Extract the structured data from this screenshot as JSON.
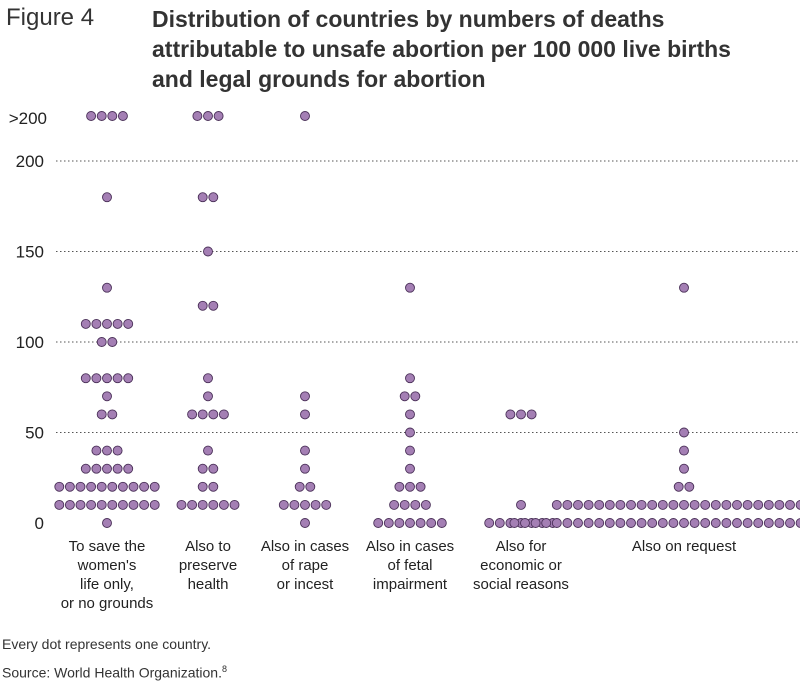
{
  "figure": {
    "label": "Figure 4",
    "title_lines": [
      "Distribution of countries by numbers of deaths",
      "attributable to unsafe abortion per 100 000 live births",
      "and legal grounds for abortion"
    ]
  },
  "footnotes": {
    "note": "Every dot represents one country.",
    "source": "Source: World Health Organization.",
    "source_ref": "8"
  },
  "chart_data": {
    "type": "scatter",
    "subtype": "dot-plot",
    "ylim": [
      0,
      200
    ],
    "overflow_label": ">200",
    "y_ticks": [
      0,
      50,
      100,
      150,
      200
    ],
    "grid": "dotted horizontal",
    "dot_color": "#a47fb4",
    "dot_stroke": "#4a3058",
    "categories": [
      {
        "label_lines": [
          "To save the",
          "women's",
          "life only,",
          "or no grounds"
        ],
        "rows": [
          {
            "y": ">200",
            "count": 4
          },
          {
            "y": 180,
            "count": 1
          },
          {
            "y": 130,
            "count": 1
          },
          {
            "y": 110,
            "count": 5
          },
          {
            "y": 100,
            "count": 2
          },
          {
            "y": 80,
            "count": 5
          },
          {
            "y": 70,
            "count": 1
          },
          {
            "y": 60,
            "count": 2
          },
          {
            "y": 40,
            "count": 3
          },
          {
            "y": 30,
            "count": 5
          },
          {
            "y": 20,
            "count": 10
          },
          {
            "y": 10,
            "count": 10
          },
          {
            "y": 0,
            "count": 1
          }
        ]
      },
      {
        "label_lines": [
          "Also to",
          "preserve",
          "health"
        ],
        "rows": [
          {
            "y": ">200",
            "count": 3
          },
          {
            "y": 180,
            "count": 2
          },
          {
            "y": 150,
            "count": 1
          },
          {
            "y": 120,
            "count": 2
          },
          {
            "y": 80,
            "count": 1
          },
          {
            "y": 70,
            "count": 1
          },
          {
            "y": 60,
            "count": 4
          },
          {
            "y": 40,
            "count": 1
          },
          {
            "y": 30,
            "count": 2
          },
          {
            "y": 20,
            "count": 2
          },
          {
            "y": 10,
            "count": 6
          }
        ]
      },
      {
        "label_lines": [
          "Also in cases",
          "of rape",
          "or incest"
        ],
        "rows": [
          {
            "y": ">200",
            "count": 1
          },
          {
            "y": 70,
            "count": 1
          },
          {
            "y": 60,
            "count": 1
          },
          {
            "y": 40,
            "count": 1
          },
          {
            "y": 30,
            "count": 1
          },
          {
            "y": 20,
            "count": 2
          },
          {
            "y": 10,
            "count": 5
          },
          {
            "y": 0,
            "count": 1
          }
        ]
      },
      {
        "label_lines": [
          "Also in cases",
          "of fetal",
          "impairment"
        ],
        "rows": [
          {
            "y": 130,
            "count": 1
          },
          {
            "y": 80,
            "count": 1
          },
          {
            "y": 70,
            "count": 2
          },
          {
            "y": 60,
            "count": 1
          },
          {
            "y": 50,
            "count": 1
          },
          {
            "y": 40,
            "count": 1
          },
          {
            "y": 30,
            "count": 1
          },
          {
            "y": 20,
            "count": 3
          },
          {
            "y": 10,
            "count": 4
          },
          {
            "y": 0,
            "count": 7
          }
        ]
      },
      {
        "label_lines": [
          "Also for",
          "economic or",
          "social reasons"
        ],
        "rows": [
          {
            "y": 60,
            "count": 3
          },
          {
            "y": 10,
            "count": 1
          },
          {
            "y": 0,
            "count": 7
          }
        ]
      },
      {
        "label_lines": [
          "Also on request"
        ],
        "rows": [
          {
            "y": 130,
            "count": 1
          },
          {
            "y": 50,
            "count": 1
          },
          {
            "y": 40,
            "count": 1
          },
          {
            "y": 30,
            "count": 1
          },
          {
            "y": 20,
            "count": 2
          },
          {
            "y": 10,
            "count": 25
          },
          {
            "y": 0,
            "count": 33
          }
        ]
      }
    ]
  }
}
